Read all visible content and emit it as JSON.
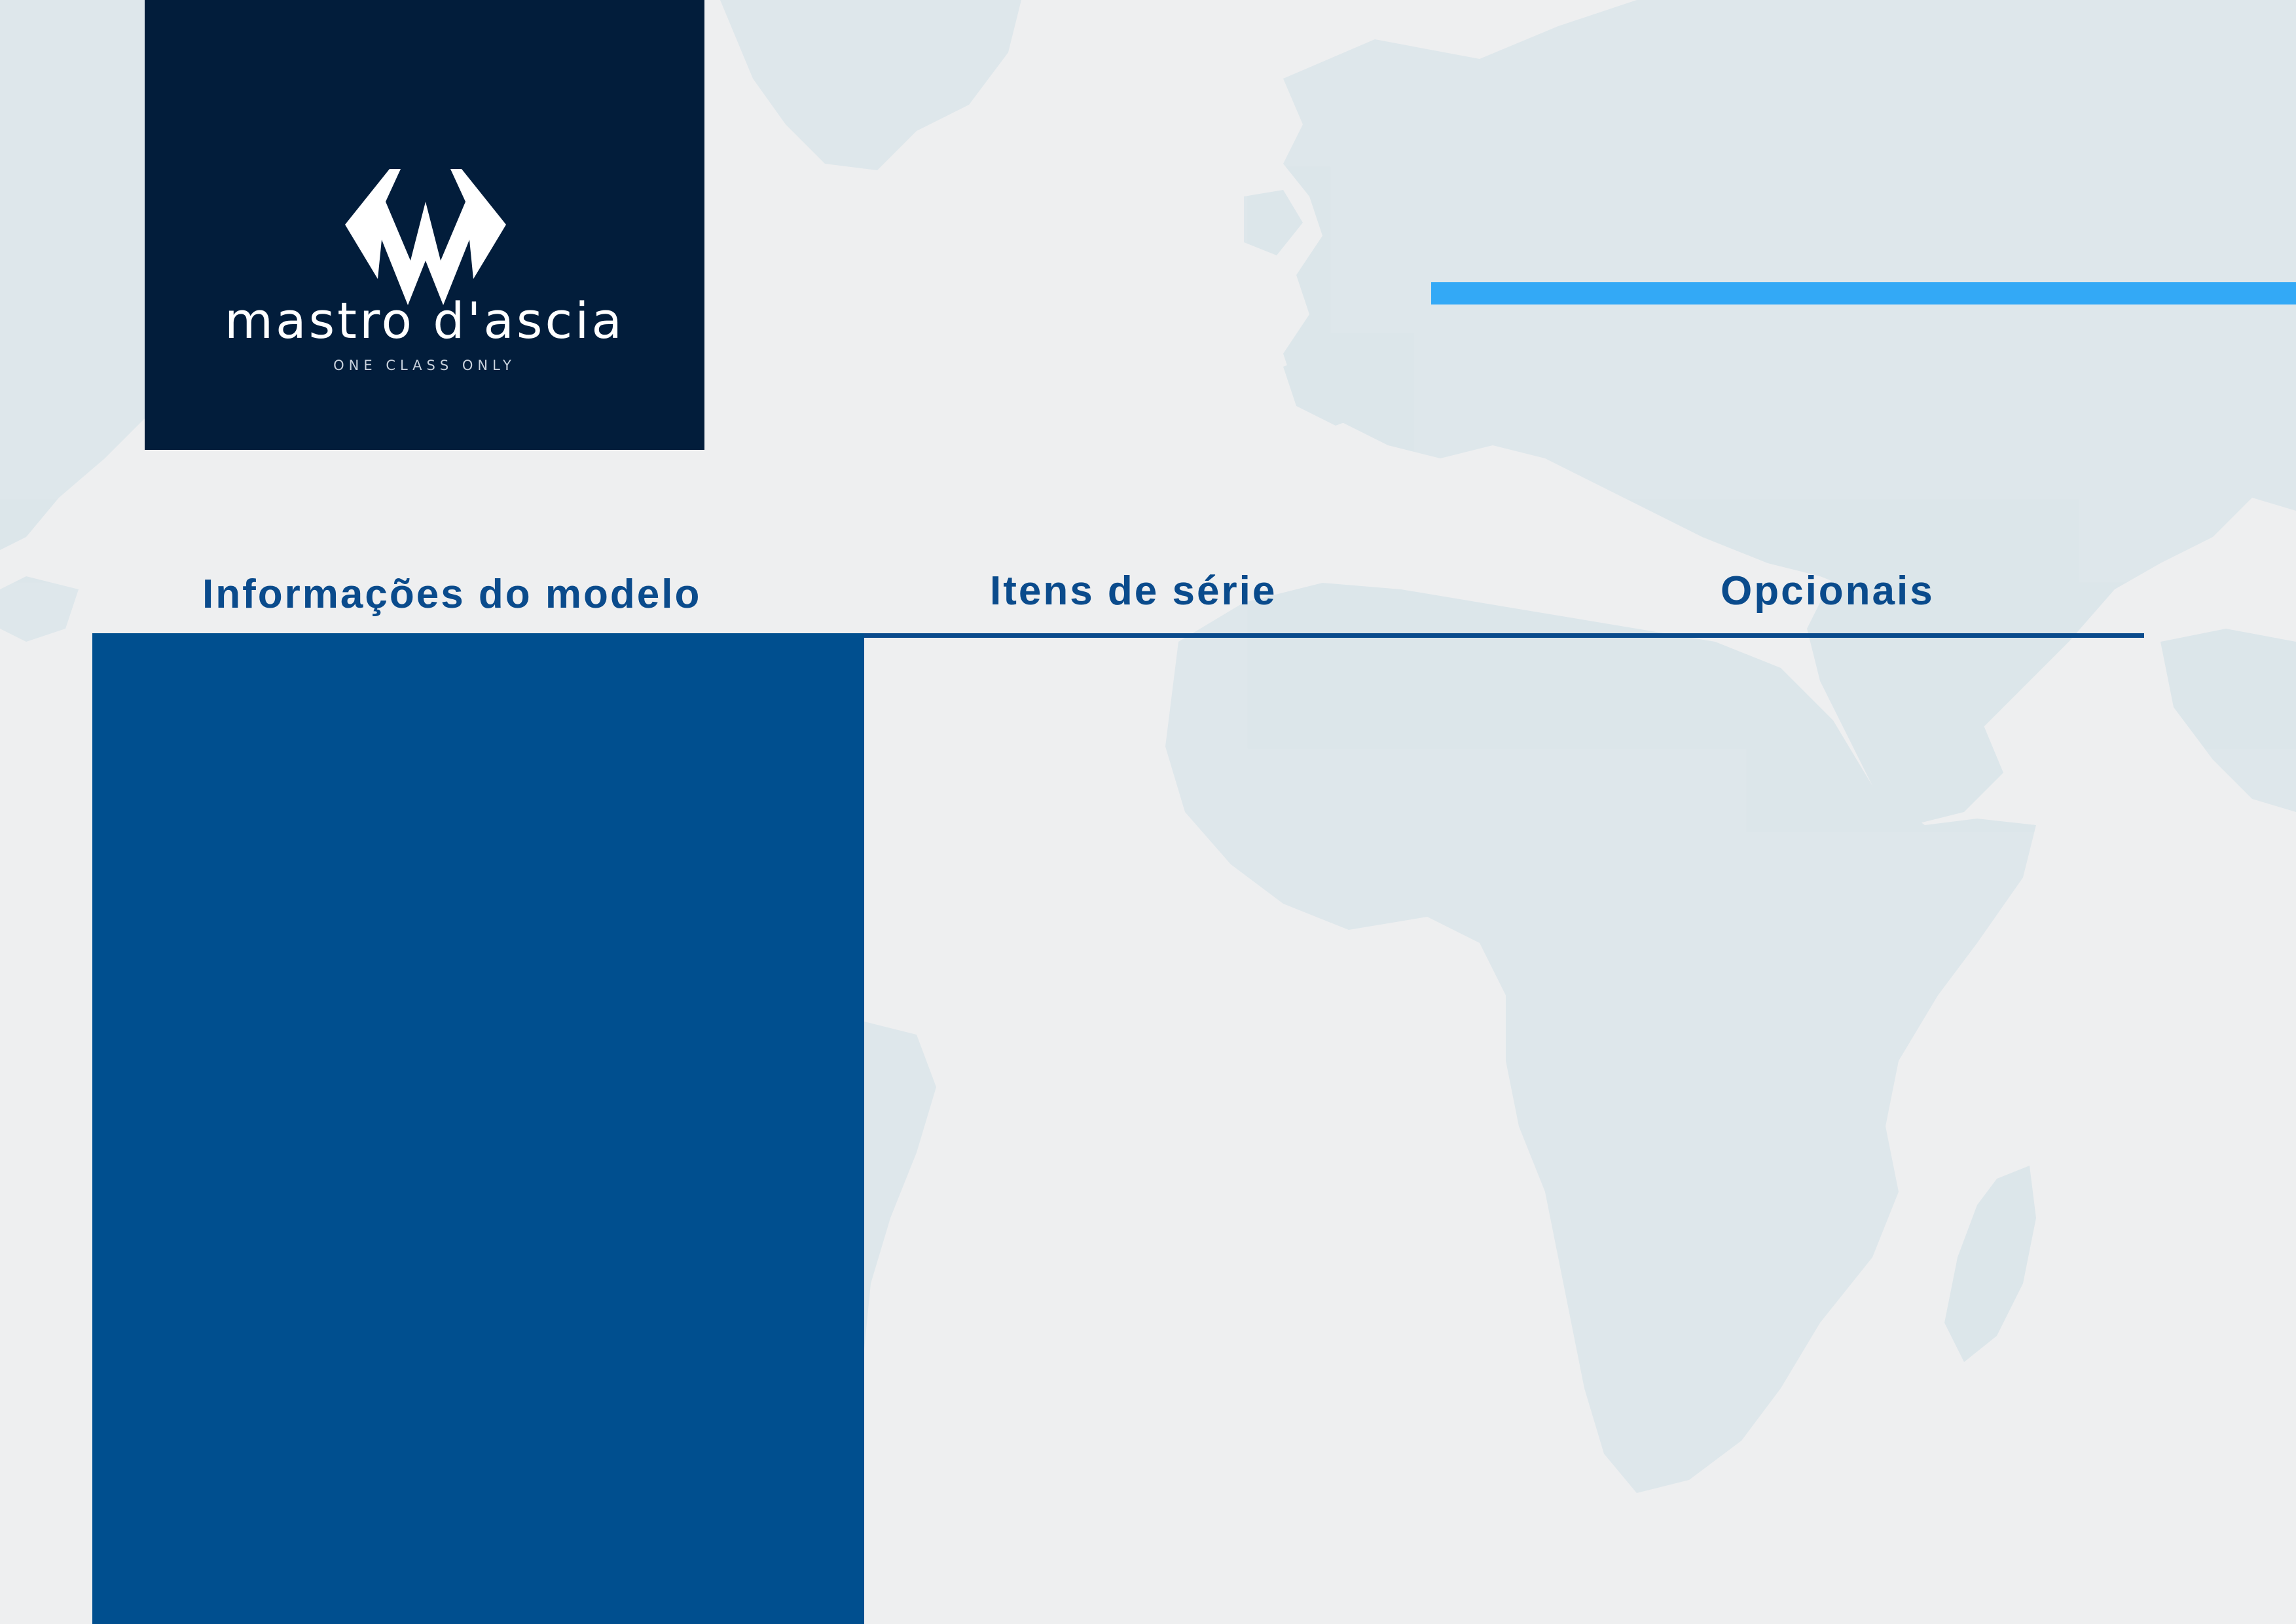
{
  "brand": {
    "name": "mastro d'ascia",
    "tagline": "ONE CLASS ONLY",
    "logo_icon": "stylized-m-logo-icon",
    "box_color": "#021d3b"
  },
  "columns": {
    "info": "Informações do modelo",
    "itens": "Itens de série",
    "opcionais": "Opcionais"
  },
  "colors": {
    "heading": "#0a4b8c",
    "panel": "#004f8f",
    "accent": "#33a9f6",
    "background": "#eeeff0",
    "map": "#dbe6ea"
  },
  "background": {
    "map_icon": "world-map-icon"
  }
}
